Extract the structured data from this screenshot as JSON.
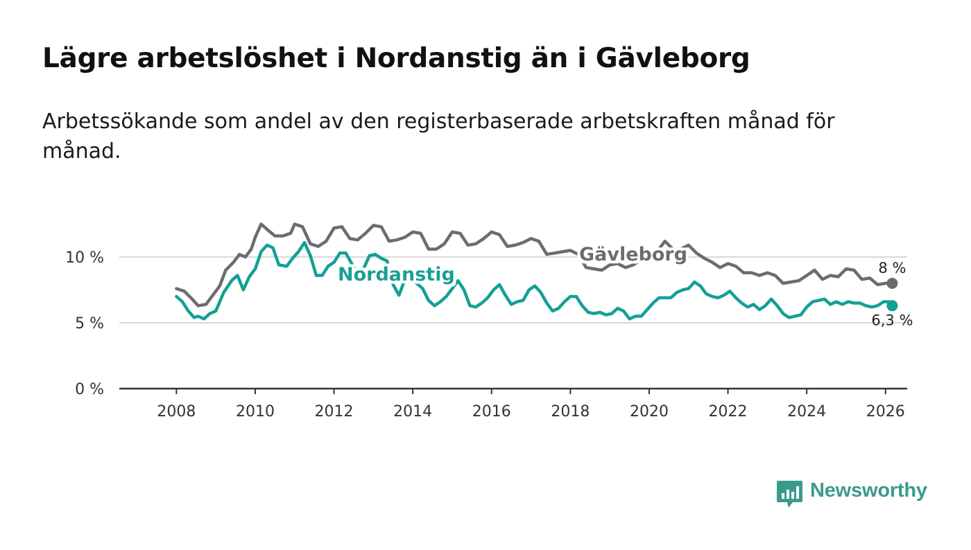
{
  "title": "Lägre arbetslöshet i Nordanstig än i Gävleborg",
  "subtitle": "Arbetssökande som andel av den registerbaserade arbetskraften månad för månad.",
  "brand": "Newsworthy",
  "colors": {
    "gavleborg": "#6d6b72",
    "nordanstig": "#14a094",
    "grid": "#d8d8d8",
    "axis": "#333333"
  },
  "chart_data": {
    "type": "line",
    "title": "Lägre arbetslöshet i Nordanstig än i Gävleborg",
    "xlabel": "",
    "ylabel": "",
    "xlim": [
      2006.55,
      2026.55
    ],
    "ylim": [
      0,
      15
    ],
    "yticks": [
      0,
      5,
      10
    ],
    "ytick_labels": [
      "0 %",
      "5 %",
      "10 %"
    ],
    "xticks": [
      2008,
      2010,
      2012,
      2014,
      2016,
      2018,
      2020,
      2022,
      2024,
      2026
    ],
    "xtick_labels": [
      "2008",
      "2010",
      "2012",
      "2014",
      "2016",
      "2018",
      "2020",
      "2022",
      "2024",
      "2026"
    ],
    "series": [
      {
        "name": "Gävleborg",
        "end_label": "8 %",
        "points": [
          [
            2008.0,
            7.6
          ],
          [
            2008.2,
            7.4
          ],
          [
            2008.4,
            6.8
          ],
          [
            2008.55,
            6.3
          ],
          [
            2008.75,
            6.4
          ],
          [
            2008.9,
            7.0
          ],
          [
            2009.1,
            7.8
          ],
          [
            2009.25,
            9.0
          ],
          [
            2009.45,
            9.6
          ],
          [
            2009.6,
            10.2
          ],
          [
            2009.75,
            10.0
          ],
          [
            2009.9,
            10.6
          ],
          [
            2010.0,
            11.5
          ],
          [
            2010.15,
            12.5
          ],
          [
            2010.3,
            12.1
          ],
          [
            2010.5,
            11.6
          ],
          [
            2010.7,
            11.6
          ],
          [
            2010.9,
            11.8
          ],
          [
            2011.0,
            12.5
          ],
          [
            2011.2,
            12.3
          ],
          [
            2011.4,
            11.0
          ],
          [
            2011.6,
            10.8
          ],
          [
            2011.8,
            11.2
          ],
          [
            2012.0,
            12.2
          ],
          [
            2012.2,
            12.3
          ],
          [
            2012.4,
            11.4
          ],
          [
            2012.6,
            11.3
          ],
          [
            2012.8,
            11.8
          ],
          [
            2013.0,
            12.4
          ],
          [
            2013.2,
            12.3
          ],
          [
            2013.4,
            11.2
          ],
          [
            2013.6,
            11.3
          ],
          [
            2013.8,
            11.5
          ],
          [
            2014.0,
            11.9
          ],
          [
            2014.2,
            11.8
          ],
          [
            2014.4,
            10.6
          ],
          [
            2014.6,
            10.6
          ],
          [
            2014.8,
            11.0
          ],
          [
            2015.0,
            11.9
          ],
          [
            2015.2,
            11.8
          ],
          [
            2015.4,
            10.9
          ],
          [
            2015.6,
            11.0
          ],
          [
            2015.8,
            11.4
          ],
          [
            2016.0,
            11.9
          ],
          [
            2016.2,
            11.7
          ],
          [
            2016.4,
            10.8
          ],
          [
            2016.6,
            10.9
          ],
          [
            2016.8,
            11.1
          ],
          [
            2017.0,
            11.4
          ],
          [
            2017.2,
            11.2
          ],
          [
            2017.4,
            10.2
          ],
          [
            2017.6,
            10.3
          ],
          [
            2017.8,
            10.4
          ],
          [
            2018.0,
            10.5
          ],
          [
            2018.2,
            10.2
          ],
          [
            2018.4,
            9.2
          ],
          [
            2018.6,
            9.1
          ],
          [
            2018.8,
            9.0
          ],
          [
            2019.0,
            9.4
          ],
          [
            2019.2,
            9.5
          ],
          [
            2019.4,
            9.2
          ],
          [
            2019.6,
            9.4
          ],
          [
            2019.8,
            9.8
          ],
          [
            2020.0,
            10.0
          ],
          [
            2020.2,
            10.4
          ],
          [
            2020.4,
            11.2
          ],
          [
            2020.6,
            10.6
          ],
          [
            2020.8,
            10.6
          ],
          [
            2021.0,
            10.9
          ],
          [
            2021.2,
            10.3
          ],
          [
            2021.4,
            9.9
          ],
          [
            2021.6,
            9.6
          ],
          [
            2021.8,
            9.2
          ],
          [
            2022.0,
            9.5
          ],
          [
            2022.2,
            9.3
          ],
          [
            2022.4,
            8.8
          ],
          [
            2022.6,
            8.8
          ],
          [
            2022.8,
            8.6
          ],
          [
            2023.0,
            8.8
          ],
          [
            2023.2,
            8.6
          ],
          [
            2023.4,
            8.0
          ],
          [
            2023.6,
            8.1
          ],
          [
            2023.8,
            8.2
          ],
          [
            2024.0,
            8.6
          ],
          [
            2024.2,
            9.0
          ],
          [
            2024.4,
            8.3
          ],
          [
            2024.6,
            8.6
          ],
          [
            2024.8,
            8.5
          ],
          [
            2025.0,
            9.1
          ],
          [
            2025.2,
            9.0
          ],
          [
            2025.4,
            8.3
          ],
          [
            2025.6,
            8.4
          ],
          [
            2025.8,
            7.9
          ],
          [
            2026.0,
            8.0
          ],
          [
            2026.17,
            8.0
          ]
        ]
      },
      {
        "name": "Nordanstig",
        "end_label": "6,3 %",
        "points": [
          [
            2008.0,
            7.0
          ],
          [
            2008.15,
            6.6
          ],
          [
            2008.3,
            5.9
          ],
          [
            2008.45,
            5.4
          ],
          [
            2008.55,
            5.5
          ],
          [
            2008.7,
            5.3
          ],
          [
            2008.85,
            5.7
          ],
          [
            2009.0,
            5.9
          ],
          [
            2009.2,
            7.3
          ],
          [
            2009.4,
            8.2
          ],
          [
            2009.55,
            8.6
          ],
          [
            2009.7,
            7.5
          ],
          [
            2009.85,
            8.5
          ],
          [
            2010.0,
            9.1
          ],
          [
            2010.15,
            10.4
          ],
          [
            2010.3,
            10.9
          ],
          [
            2010.45,
            10.7
          ],
          [
            2010.6,
            9.4
          ],
          [
            2010.8,
            9.3
          ],
          [
            2010.95,
            9.9
          ],
          [
            2011.1,
            10.4
          ],
          [
            2011.25,
            11.1
          ],
          [
            2011.4,
            10.1
          ],
          [
            2011.55,
            8.6
          ],
          [
            2011.7,
            8.6
          ],
          [
            2011.85,
            9.3
          ],
          [
            2012.0,
            9.6
          ],
          [
            2012.15,
            10.3
          ],
          [
            2012.3,
            10.3
          ],
          [
            2012.45,
            9.5
          ],
          [
            2012.6,
            8.5
          ],
          [
            2012.75,
            9.1
          ],
          [
            2012.9,
            10.1
          ],
          [
            2013.05,
            10.2
          ],
          [
            2013.2,
            9.9
          ],
          [
            2013.35,
            9.7
          ],
          [
            2013.5,
            7.9
          ],
          [
            2013.65,
            7.1
          ],
          [
            2013.8,
            8.3
          ],
          [
            2013.95,
            8.4
          ],
          [
            2014.1,
            8.0
          ],
          [
            2014.25,
            7.6
          ],
          [
            2014.4,
            6.7
          ],
          [
            2014.55,
            6.3
          ],
          [
            2014.7,
            6.6
          ],
          [
            2014.85,
            7.0
          ],
          [
            2015.0,
            7.6
          ],
          [
            2015.15,
            8.2
          ],
          [
            2015.3,
            7.5
          ],
          [
            2015.45,
            6.3
          ],
          [
            2015.6,
            6.2
          ],
          [
            2015.75,
            6.5
          ],
          [
            2015.9,
            6.9
          ],
          [
            2016.05,
            7.5
          ],
          [
            2016.2,
            7.9
          ],
          [
            2016.35,
            7.1
          ],
          [
            2016.5,
            6.4
          ],
          [
            2016.65,
            6.6
          ],
          [
            2016.8,
            6.7
          ],
          [
            2016.95,
            7.5
          ],
          [
            2017.1,
            7.8
          ],
          [
            2017.25,
            7.3
          ],
          [
            2017.4,
            6.5
          ],
          [
            2017.55,
            5.9
          ],
          [
            2017.7,
            6.1
          ],
          [
            2017.85,
            6.6
          ],
          [
            2018.0,
            7.0
          ],
          [
            2018.15,
            7.0
          ],
          [
            2018.3,
            6.3
          ],
          [
            2018.45,
            5.8
          ],
          [
            2018.6,
            5.7
          ],
          [
            2018.75,
            5.8
          ],
          [
            2018.9,
            5.6
          ],
          [
            2019.05,
            5.7
          ],
          [
            2019.2,
            6.1
          ],
          [
            2019.35,
            5.9
          ],
          [
            2019.5,
            5.3
          ],
          [
            2019.65,
            5.5
          ],
          [
            2019.8,
            5.5
          ],
          [
            2019.95,
            6.0
          ],
          [
            2020.1,
            6.5
          ],
          [
            2020.25,
            6.9
          ],
          [
            2020.4,
            6.9
          ],
          [
            2020.55,
            6.9
          ],
          [
            2020.7,
            7.3
          ],
          [
            2020.85,
            7.5
          ],
          [
            2021.0,
            7.6
          ],
          [
            2021.15,
            8.1
          ],
          [
            2021.3,
            7.8
          ],
          [
            2021.45,
            7.2
          ],
          [
            2021.6,
            7.0
          ],
          [
            2021.75,
            6.9
          ],
          [
            2021.9,
            7.1
          ],
          [
            2022.05,
            7.4
          ],
          [
            2022.2,
            6.9
          ],
          [
            2022.35,
            6.5
          ],
          [
            2022.5,
            6.2
          ],
          [
            2022.65,
            6.4
          ],
          [
            2022.8,
            6.0
          ],
          [
            2022.95,
            6.3
          ],
          [
            2023.1,
            6.8
          ],
          [
            2023.25,
            6.3
          ],
          [
            2023.4,
            5.7
          ],
          [
            2023.55,
            5.4
          ],
          [
            2023.7,
            5.5
          ],
          [
            2023.85,
            5.6
          ],
          [
            2024.0,
            6.2
          ],
          [
            2024.15,
            6.6
          ],
          [
            2024.3,
            6.7
          ],
          [
            2024.45,
            6.8
          ],
          [
            2024.6,
            6.4
          ],
          [
            2024.75,
            6.6
          ],
          [
            2024.9,
            6.4
          ],
          [
            2025.05,
            6.6
          ],
          [
            2025.2,
            6.5
          ],
          [
            2025.35,
            6.5
          ],
          [
            2025.5,
            6.3
          ],
          [
            2025.65,
            6.2
          ],
          [
            2025.8,
            6.3
          ],
          [
            2025.95,
            6.6
          ],
          [
            2026.1,
            6.6
          ],
          [
            2026.17,
            6.3
          ]
        ]
      }
    ]
  }
}
